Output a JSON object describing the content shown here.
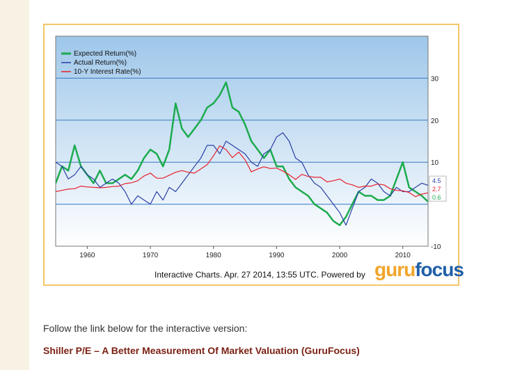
{
  "chart_data": {
    "type": "line",
    "xlim": [
      1955,
      2014
    ],
    "ylim": [
      -10,
      40
    ],
    "x_ticks": [
      1960,
      1970,
      1980,
      1990,
      2000,
      2010
    ],
    "y_ticks": [
      30,
      20,
      10,
      -10
    ],
    "legend_position": "top-left",
    "series": [
      {
        "name": "Expected Return(%)",
        "color": "#1cab4e",
        "last_value_label": "0.6",
        "points": [
          [
            1955,
            5
          ],
          [
            1956,
            9
          ],
          [
            1957,
            8
          ],
          [
            1958,
            14
          ],
          [
            1959,
            9
          ],
          [
            1960,
            7
          ],
          [
            1961,
            5
          ],
          [
            1962,
            8
          ],
          [
            1963,
            5
          ],
          [
            1964,
            5
          ],
          [
            1965,
            6
          ],
          [
            1966,
            7
          ],
          [
            1967,
            6
          ],
          [
            1968,
            8
          ],
          [
            1969,
            11
          ],
          [
            1970,
            13
          ],
          [
            1971,
            12
          ],
          [
            1972,
            9
          ],
          [
            1973,
            13
          ],
          [
            1974,
            24
          ],
          [
            1975,
            18
          ],
          [
            1976,
            16
          ],
          [
            1977,
            18
          ],
          [
            1978,
            20
          ],
          [
            1979,
            23
          ],
          [
            1980,
            24
          ],
          [
            1981,
            26
          ],
          [
            1982,
            29
          ],
          [
            1983,
            23
          ],
          [
            1984,
            22
          ],
          [
            1985,
            19
          ],
          [
            1986,
            15
          ],
          [
            1987,
            13
          ],
          [
            1988,
            11
          ],
          [
            1989,
            13
          ],
          [
            1990,
            9
          ],
          [
            1991,
            9
          ],
          [
            1992,
            6
          ],
          [
            1993,
            4
          ],
          [
            1994,
            3
          ],
          [
            1995,
            2
          ],
          [
            1996,
            0
          ],
          [
            1997,
            -1
          ],
          [
            1998,
            -2
          ],
          [
            1999,
            -4
          ],
          [
            2000,
            -5
          ],
          [
            2001,
            -3
          ],
          [
            2002,
            0
          ],
          [
            2003,
            3
          ],
          [
            2004,
            2
          ],
          [
            2005,
            2
          ],
          [
            2006,
            1
          ],
          [
            2007,
            1
          ],
          [
            2008,
            2
          ],
          [
            2009,
            6
          ],
          [
            2010,
            10
          ],
          [
            2011,
            4
          ],
          [
            2012,
            3
          ],
          [
            2013,
            2
          ],
          [
            2014,
            0.6
          ]
        ]
      },
      {
        "name": "Actual Return(%)",
        "color": "#2a3fa6",
        "last_value_label": "4.5",
        "points": [
          [
            1955,
            10
          ],
          [
            1956,
            9
          ],
          [
            1957,
            6
          ],
          [
            1958,
            7
          ],
          [
            1959,
            9
          ],
          [
            1960,
            7
          ],
          [
            1961,
            6
          ],
          [
            1962,
            4
          ],
          [
            1963,
            5
          ],
          [
            1964,
            6
          ],
          [
            1965,
            5
          ],
          [
            1966,
            3
          ],
          [
            1967,
            0
          ],
          [
            1968,
            2
          ],
          [
            1969,
            1
          ],
          [
            1970,
            0
          ],
          [
            1971,
            3
          ],
          [
            1972,
            1
          ],
          [
            1973,
            4
          ],
          [
            1974,
            3
          ],
          [
            1975,
            5
          ],
          [
            1976,
            7
          ],
          [
            1977,
            9
          ],
          [
            1978,
            11
          ],
          [
            1979,
            14
          ],
          [
            1980,
            14
          ],
          [
            1981,
            12
          ],
          [
            1982,
            15
          ],
          [
            1983,
            14
          ],
          [
            1984,
            13
          ],
          [
            1985,
            12
          ],
          [
            1986,
            10
          ],
          [
            1987,
            9
          ],
          [
            1988,
            12
          ],
          [
            1989,
            13
          ],
          [
            1990,
            16
          ],
          [
            1991,
            17
          ],
          [
            1992,
            15
          ],
          [
            1993,
            11
          ],
          [
            1994,
            10
          ],
          [
            1995,
            7
          ],
          [
            1996,
            5
          ],
          [
            1997,
            4
          ],
          [
            1998,
            2
          ],
          [
            1999,
            0
          ],
          [
            2000,
            -2
          ],
          [
            2001,
            -5
          ],
          [
            2002,
            -1
          ],
          [
            2003,
            3
          ],
          [
            2004,
            4
          ],
          [
            2005,
            6
          ],
          [
            2006,
            5
          ],
          [
            2007,
            3
          ],
          [
            2008,
            2
          ],
          [
            2009,
            4
          ],
          [
            2010,
            3
          ],
          [
            2011,
            3
          ],
          [
            2012,
            4
          ],
          [
            2013,
            5
          ],
          [
            2014,
            4.5
          ]
        ]
      },
      {
        "name": "10-Y Interest Rate(%)",
        "color": "#e8202b",
        "last_value_label": "2.7",
        "points": [
          [
            1955,
            3
          ],
          [
            1956,
            3.3
          ],
          [
            1957,
            3.6
          ],
          [
            1958,
            3.7
          ],
          [
            1959,
            4.3
          ],
          [
            1960,
            4.1
          ],
          [
            1961,
            4
          ],
          [
            1962,
            3.9
          ],
          [
            1963,
            4
          ],
          [
            1964,
            4.2
          ],
          [
            1965,
            4.3
          ],
          [
            1966,
            4.9
          ],
          [
            1967,
            5.1
          ],
          [
            1968,
            5.6
          ],
          [
            1969,
            6.7
          ],
          [
            1970,
            7.4
          ],
          [
            1971,
            6.2
          ],
          [
            1972,
            6.2
          ],
          [
            1973,
            6.9
          ],
          [
            1974,
            7.6
          ],
          [
            1975,
            8
          ],
          [
            1976,
            7.6
          ],
          [
            1977,
            7.4
          ],
          [
            1978,
            8.4
          ],
          [
            1979,
            9.4
          ],
          [
            1980,
            11.5
          ],
          [
            1981,
            13.9
          ],
          [
            1982,
            13
          ],
          [
            1983,
            11.1
          ],
          [
            1984,
            12.4
          ],
          [
            1985,
            10.6
          ],
          [
            1986,
            7.7
          ],
          [
            1987,
            8.4
          ],
          [
            1988,
            8.9
          ],
          [
            1989,
            8.5
          ],
          [
            1990,
            8.6
          ],
          [
            1991,
            7.9
          ],
          [
            1992,
            7
          ],
          [
            1993,
            5.9
          ],
          [
            1994,
            7.1
          ],
          [
            1995,
            6.6
          ],
          [
            1996,
            6.4
          ],
          [
            1997,
            6.4
          ],
          [
            1998,
            5.3
          ],
          [
            1999,
            5.6
          ],
          [
            2000,
            6
          ],
          [
            2001,
            5
          ],
          [
            2002,
            4.6
          ],
          [
            2003,
            4
          ],
          [
            2004,
            4.3
          ],
          [
            2005,
            4.3
          ],
          [
            2006,
            4.8
          ],
          [
            2007,
            4.6
          ],
          [
            2008,
            3.7
          ],
          [
            2009,
            3.3
          ],
          [
            2010,
            3.2
          ],
          [
            2011,
            2.8
          ],
          [
            2012,
            1.8
          ],
          [
            2013,
            2.4
          ],
          [
            2014,
            2.7
          ]
        ]
      }
    ]
  },
  "footer": {
    "caption": "Interactive Charts. Apr. 27 2014, 13:55 UTC. Powered by",
    "logo_part1": "guru",
    "logo_part2": "focus"
  },
  "follow_text": "Follow the link below for the interactive version:",
  "link_text": "Shiller P/E – A Better Measurement Of Market Valuation (GuruFocus)"
}
